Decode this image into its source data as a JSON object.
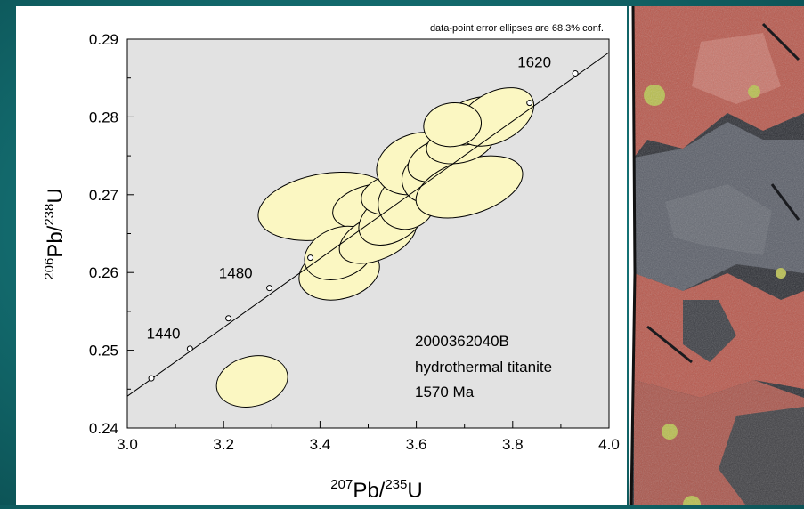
{
  "chart_data": {
    "type": "scatter",
    "subtype": "concordia-error-ellipse",
    "note": "data-point error ellipses are 68.3% conf.",
    "xlabel": {
      "sup1": "207",
      "base1": "Pb/",
      "sup2": "235",
      "base2": "U"
    },
    "ylabel": {
      "sup1": "206",
      "base1": "Pb/",
      "sup2": "238",
      "base2": "U"
    },
    "xlim": [
      3.0,
      4.0
    ],
    "ylim": [
      0.24,
      0.29
    ],
    "x_ticks": [
      "3.0",
      "3.2",
      "3.4",
      "3.6",
      "3.8",
      "4.0"
    ],
    "y_ticks": [
      "0.24",
      "0.25",
      "0.26",
      "0.27",
      "0.28",
      "0.29"
    ],
    "grid": false,
    "plot_background": "#e2e2e2",
    "ellipse_fill": "#fbf7c2",
    "concordia_line": {
      "from": [
        3.0,
        0.2441
      ],
      "to": [
        4.0,
        0.2883
      ],
      "markers": [
        {
          "x": 3.05,
          "y": 0.2464
        },
        {
          "x": 3.13,
          "y": 0.2502
        },
        {
          "x": 3.21,
          "y": 0.2541
        },
        {
          "x": 3.295,
          "y": 0.258
        },
        {
          "x": 3.38,
          "y": 0.2619
        },
        {
          "x": 3.835,
          "y": 0.2818
        },
        {
          "x": 3.93,
          "y": 0.2856
        }
      ],
      "age_labels": [
        {
          "text": "1440",
          "x": 3.075,
          "y": 0.2515
        },
        {
          "text": "1480",
          "x": 3.225,
          "y": 0.2593
        },
        {
          "text": "1620",
          "x": 3.845,
          "y": 0.2864
        }
      ]
    },
    "ellipses": [
      {
        "cx": 3.41,
        "cy": 0.2685,
        "rx": 0.14,
        "ry": 0.0042,
        "rot": -10
      },
      {
        "cx": 3.259,
        "cy": 0.246,
        "rx": 0.075,
        "ry": 0.0032,
        "rot": -14
      },
      {
        "cx": 3.51,
        "cy": 0.2685,
        "rx": 0.085,
        "ry": 0.0028,
        "rot": -12
      },
      {
        "cx": 3.44,
        "cy": 0.26,
        "rx": 0.085,
        "ry": 0.0034,
        "rot": -14
      },
      {
        "cx": 3.44,
        "cy": 0.2625,
        "rx": 0.075,
        "ry": 0.0032,
        "rot": -22
      },
      {
        "cx": 3.52,
        "cy": 0.2645,
        "rx": 0.085,
        "ry": 0.0028,
        "rot": -24
      },
      {
        "cx": 3.55,
        "cy": 0.267,
        "rx": 0.075,
        "ry": 0.003,
        "rot": -30
      },
      {
        "cx": 3.55,
        "cy": 0.27,
        "rx": 0.065,
        "ry": 0.0025,
        "rot": -12
      },
      {
        "cx": 3.58,
        "cy": 0.269,
        "rx": 0.06,
        "ry": 0.0034,
        "rot": -25
      },
      {
        "cx": 3.6,
        "cy": 0.274,
        "rx": 0.085,
        "ry": 0.0038,
        "rot": -20
      },
      {
        "cx": 3.62,
        "cy": 0.272,
        "rx": 0.05,
        "ry": 0.003,
        "rot": -25
      },
      {
        "cx": 3.65,
        "cy": 0.2745,
        "rx": 0.07,
        "ry": 0.0026,
        "rot": -20
      },
      {
        "cx": 3.71,
        "cy": 0.271,
        "rx": 0.115,
        "ry": 0.0035,
        "rot": -18
      },
      {
        "cx": 3.69,
        "cy": 0.2765,
        "rx": 0.07,
        "ry": 0.0024,
        "rot": -12
      },
      {
        "cx": 3.72,
        "cy": 0.2795,
        "rx": 0.08,
        "ry": 0.0028,
        "rot": -20
      },
      {
        "cx": 3.765,
        "cy": 0.28,
        "rx": 0.085,
        "ry": 0.0032,
        "rot": -28
      },
      {
        "cx": 3.675,
        "cy": 0.279,
        "rx": 0.06,
        "ry": 0.0028,
        "rot": -8
      }
    ],
    "annotation": [
      "2000362040B",
      "hydrothermal titanite",
      "1570 Ma"
    ]
  },
  "photo": {
    "icon": "rock-specimen-image",
    "colors": {
      "dark": "#2b2d33",
      "red": "#b8574b",
      "pink": "#c9756a",
      "grey": "#5a5e68",
      "lichen": "#b9bf4e"
    }
  }
}
